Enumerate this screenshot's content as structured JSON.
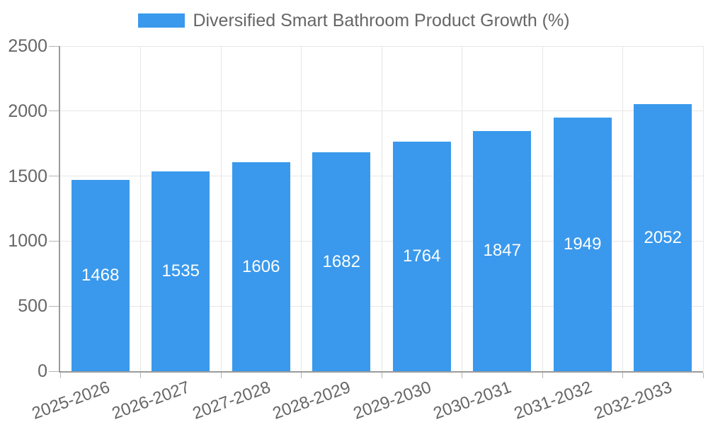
{
  "legend": {
    "label": "Diversified Smart Bathroom Product Growth (%)"
  },
  "chart_data": {
    "type": "bar",
    "title": "Diversified Smart Bathroom Product Growth (%)",
    "series_name": "Diversified Smart Bathroom Product Growth (%)",
    "categories": [
      "2025-2026",
      "2026-2027",
      "2027-2028",
      "2028-2029",
      "2029-2030",
      "2030-2031",
      "2031-2032",
      "2032-2033"
    ],
    "values": [
      1468,
      1535,
      1606,
      1682,
      1764,
      1847,
      1949,
      2052
    ],
    "xlabel": "",
    "ylabel": "",
    "ylim": [
      0,
      2500
    ],
    "yticks": [
      0,
      500,
      1000,
      1500,
      2000,
      2500
    ],
    "grid": true,
    "legend_position": "top",
    "colors": {
      "bar": "#3a99ec",
      "bar_value_text": "#ffffff",
      "tick_text": "#666666",
      "gridline": "#e6e6e6",
      "axis_line": "#9b9b9b",
      "tick_mark": "#b5b5b5",
      "background": "#ffffff"
    }
  }
}
